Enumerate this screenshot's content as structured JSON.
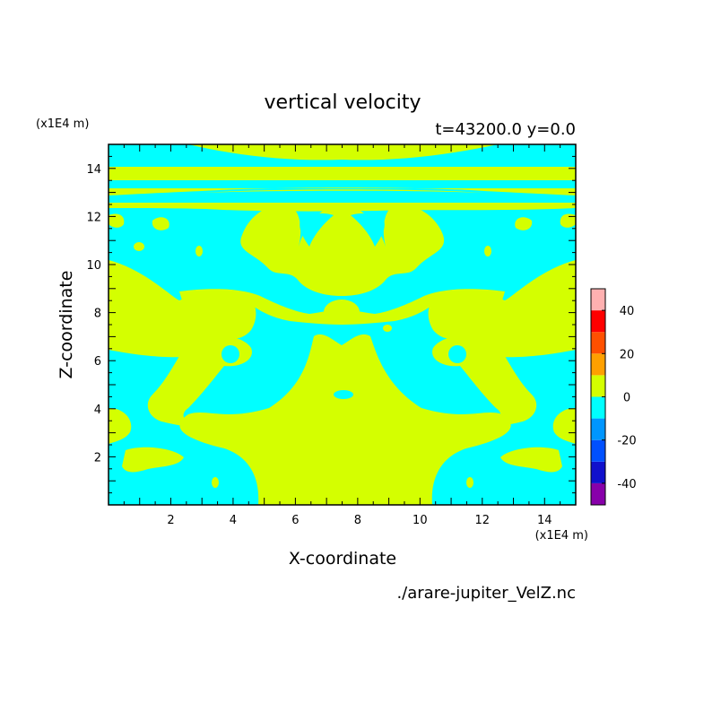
{
  "chart_data": {
    "type": "heatmap",
    "title": "vertical velocity",
    "subtitle": "t=43200.0 y=0.0",
    "xlabel": "X-coordinate",
    "ylabel": "Z-coordinate",
    "x_unit": "(x1E4 m)",
    "y_unit": "(x1E4 m)",
    "source_file": "./arare-jupiter_VelZ.nc",
    "xlim": [
      0,
      15
    ],
    "ylim": [
      0,
      15
    ],
    "xticks": [
      2,
      4,
      6,
      8,
      10,
      12,
      14
    ],
    "yticks": [
      2,
      4,
      6,
      8,
      10,
      12,
      14
    ],
    "field_levels": {
      "positive": "0 to 10",
      "negative": "-10 to 0"
    },
    "colorbar": {
      "range": [
        -50,
        50
      ],
      "bounds": [
        -50,
        -40,
        -30,
        -20,
        -10,
        0,
        10,
        20,
        30,
        40,
        50
      ],
      "colors": [
        "#8800aa",
        "#1010cc",
        "#0050ff",
        "#0096ff",
        "#00ffff",
        "#d4ff00",
        "#ffa000",
        "#ff5000",
        "#ff0000",
        "#ffb0b0"
      ],
      "tick_labels": [
        "-40",
        "-20",
        "0",
        "20",
        "40"
      ],
      "tick_values": [
        -40,
        -20,
        0,
        20,
        40
      ]
    }
  }
}
